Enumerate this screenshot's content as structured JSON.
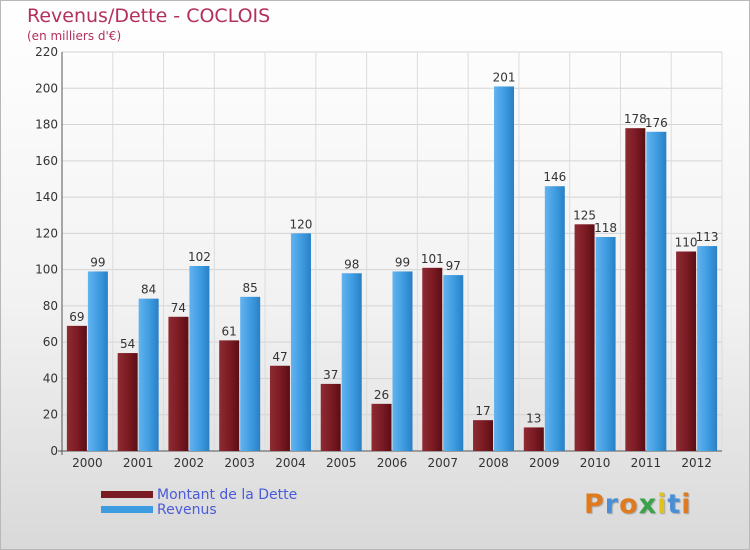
{
  "chart_data": {
    "type": "bar",
    "title": "Revenus/Dette - COCLOIS",
    "subtitle": "(en milliers d'€)",
    "xlabel": "",
    "ylabel": "",
    "ylim": [
      0,
      220
    ],
    "yticks": [
      0,
      20,
      40,
      60,
      80,
      100,
      120,
      140,
      160,
      180,
      200,
      220
    ],
    "grid": true,
    "legend_position": "bottom-left",
    "categories": [
      "2000",
      "2001",
      "2002",
      "2003",
      "2004",
      "2005",
      "2006",
      "2007",
      "2008",
      "2009",
      "2010",
      "2011",
      "2012"
    ],
    "series": [
      {
        "name": "Montant de la Dette",
        "color": "#7a1a22",
        "values": [
          69,
          54,
          74,
          61,
          47,
          37,
          26,
          101,
          17,
          13,
          125,
          178,
          110
        ]
      },
      {
        "name": "Revenus",
        "color": "#3d9be0",
        "values": [
          99,
          84,
          102,
          85,
          120,
          98,
          99,
          97,
          201,
          146,
          118,
          176,
          113
        ]
      }
    ]
  },
  "logo": {
    "text": "Proxiti",
    "letter_colors": [
      "#e07a1f",
      "#4a8fd6",
      "#e07a1f",
      "#3aa34a",
      "#e0c21f",
      "#4a8fd6",
      "#e07a1f"
    ]
  }
}
